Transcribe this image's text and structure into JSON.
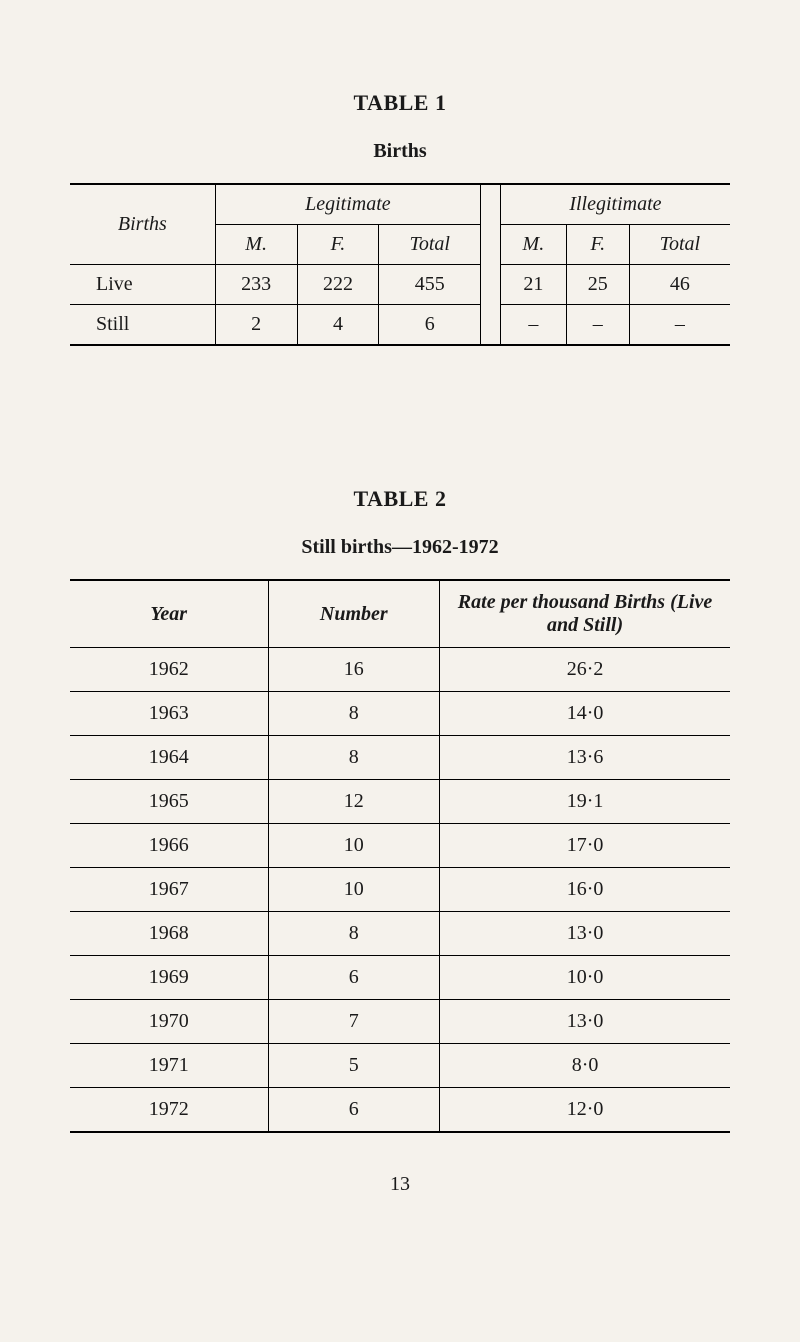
{
  "table1": {
    "title": "TABLE 1",
    "subtitle": "Births",
    "row_header": "Births",
    "group1": "Legitimate",
    "group2": "Illegitimate",
    "col_m": "M.",
    "col_f": "F.",
    "col_total": "Total",
    "rows": [
      {
        "label": "Live",
        "leg_m": "233",
        "leg_f": "222",
        "leg_total": "455",
        "ill_m": "21",
        "ill_f": "25",
        "ill_total": "46"
      },
      {
        "label": "Still",
        "leg_m": "2",
        "leg_f": "4",
        "leg_total": "6",
        "ill_m": "–",
        "ill_f": "–",
        "ill_total": "–"
      }
    ]
  },
  "table2": {
    "title": "TABLE 2",
    "subtitle": "Still births—1962-1972",
    "col_year": "Year",
    "col_number": "Number",
    "col_rate": "Rate per thousand Births (Live and Still)",
    "rows": [
      {
        "year": "1962",
        "number": "16",
        "rate": "26·2"
      },
      {
        "year": "1963",
        "number": "8",
        "rate": "14·0"
      },
      {
        "year": "1964",
        "number": "8",
        "rate": "13·6"
      },
      {
        "year": "1965",
        "number": "12",
        "rate": "19·1"
      },
      {
        "year": "1966",
        "number": "10",
        "rate": "17·0"
      },
      {
        "year": "1967",
        "number": "10",
        "rate": "16·0"
      },
      {
        "year": "1968",
        "number": "8",
        "rate": "13·0"
      },
      {
        "year": "1969",
        "number": "6",
        "rate": "10·0"
      },
      {
        "year": "1970",
        "number": "7",
        "rate": "13·0"
      },
      {
        "year": "1971",
        "number": "5",
        "rate": "8·0"
      },
      {
        "year": "1972",
        "number": "6",
        "rate": "12·0"
      }
    ]
  },
  "page_number": "13"
}
